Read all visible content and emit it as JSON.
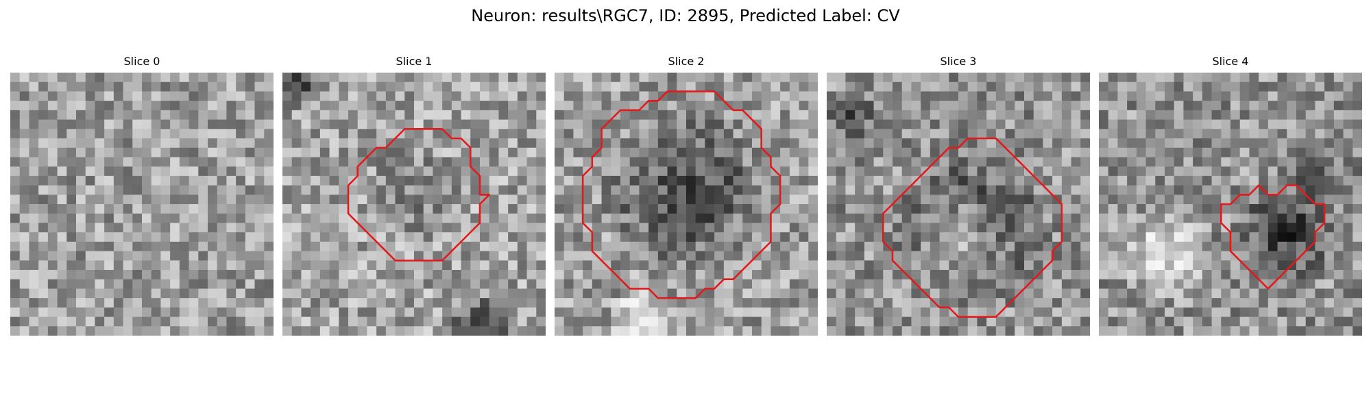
{
  "figure": {
    "title": "Neuron: results\\RGC7, ID: 2895, Predicted Label: CV"
  },
  "panels": [
    {
      "title": "Slice 0",
      "has_contour": false,
      "contour_color": "#e31a1c"
    },
    {
      "title": "Slice 1",
      "has_contour": true,
      "contour_color": "#e31a1c"
    },
    {
      "title": "Slice 2",
      "has_contour": true,
      "contour_color": "#e31a1c"
    },
    {
      "title": "Slice 3",
      "has_contour": true,
      "contour_color": "#e31a1c"
    },
    {
      "title": "Slice 4",
      "has_contour": true,
      "contour_color": "#e31a1c"
    }
  ],
  "colors": {
    "background": "#ffffff",
    "contour": "#e31a1c",
    "text": "#000000"
  }
}
